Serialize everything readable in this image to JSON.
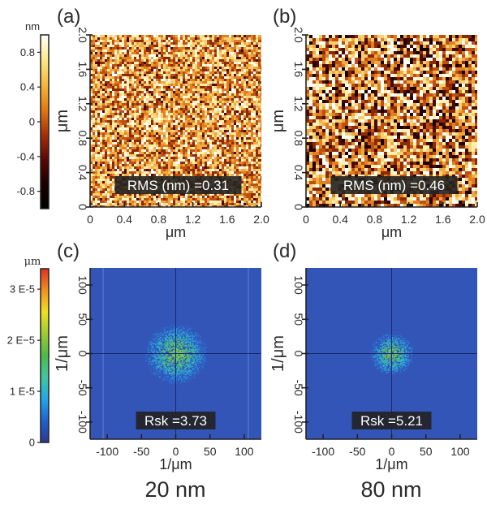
{
  "figure": {
    "panels": [
      {
        "id": "a",
        "label": "(a)",
        "type": "afm_height_map",
        "annotation": "RMS (nm) =0.31",
        "texture": "fine"
      },
      {
        "id": "b",
        "label": "(b)",
        "type": "afm_height_map",
        "annotation": "RMS (nm) =0.46",
        "texture": "coarse"
      },
      {
        "id": "c",
        "label": "(c)",
        "type": "fft_power_spectrum",
        "annotation": "Rsk =3.73",
        "spot_radius": 40
      },
      {
        "id": "d",
        "label": "(d)",
        "type": "fft_power_spectrum",
        "annotation": "Rsk =5.21",
        "spot_radius": 28
      }
    ],
    "column_captions": [
      "20 nm",
      "80 nm"
    ]
  },
  "chart_data": [
    {
      "panel": "a",
      "type": "heatmap",
      "title": "(a)",
      "xlabel": "μm",
      "ylabel": "μm",
      "xlim": [
        0,
        2.0
      ],
      "ylim": [
        0,
        2.0
      ],
      "xticks": [
        "0",
        "0.4",
        "0.8",
        "1.2",
        "1.6",
        "2.0"
      ],
      "yticks": [
        "0",
        "0.4",
        "0.8",
        "1.2",
        "1.6",
        "2.0"
      ],
      "annotation": "RMS (nm) =0.31",
      "rms_nm": 0.31,
      "colormap": "afmhot"
    },
    {
      "panel": "b",
      "type": "heatmap",
      "title": "(b)",
      "xlabel": "μm",
      "ylabel": "μm",
      "xlim": [
        0,
        2.0
      ],
      "ylim": [
        0,
        2.0
      ],
      "xticks": [
        "0",
        "0.4",
        "0.8",
        "1.2",
        "1.6",
        "2.0"
      ],
      "yticks": [
        "0",
        "0.4",
        "0.8",
        "1.2",
        "1.6",
        "2.0"
      ],
      "annotation": "RMS (nm) =0.46",
      "rms_nm": 0.46,
      "colormap": "afmhot"
    },
    {
      "panel": "c",
      "type": "heatmap",
      "title": "(c)",
      "xlabel": "1/μm",
      "ylabel": "1/μm",
      "xlim": [
        -125,
        125
      ],
      "ylim": [
        -125,
        125
      ],
      "xticks": [
        "-100",
        "-50",
        "0",
        "50",
        "100"
      ],
      "yticks": [
        "-100",
        "-50",
        "0",
        "50",
        "100"
      ],
      "annotation": "Rsk =3.73",
      "rsk": 3.73,
      "colormap": "jet"
    },
    {
      "panel": "d",
      "type": "heatmap",
      "title": "(d)",
      "xlabel": "1/μm",
      "ylabel": "1/μm",
      "xlim": [
        -125,
        125
      ],
      "ylim": [
        -125,
        125
      ],
      "xticks": [
        "-100",
        "-50",
        "0",
        "50",
        "100"
      ],
      "yticks": [
        "-100",
        "-50",
        "0",
        "50",
        "100"
      ],
      "annotation": "Rsk =5.21",
      "rsk": 5.21,
      "colormap": "jet"
    }
  ],
  "colorbars": [
    {
      "id": "height",
      "unit": "nm",
      "range": [
        -1.0,
        1.0
      ],
      "ticks": [
        {
          "value": 0.8,
          "label": "0.8"
        },
        {
          "value": 0.4,
          "label": "0.4"
        },
        {
          "value": 0,
          "label": "0"
        },
        {
          "value": -0.4,
          "label": "-0.4"
        },
        {
          "value": -0.8,
          "label": "-0.8"
        }
      ],
      "colors": [
        "#000000",
        "#1a0000",
        "#5a0a05",
        "#a8300a",
        "#e27a10",
        "#f5b83a",
        "#fde98a",
        "#ffffff"
      ]
    },
    {
      "id": "power",
      "unit": "μm",
      "range": [
        0,
        3.4e-05
      ],
      "ticks": [
        {
          "value": 3e-05,
          "label": "3 E-5"
        },
        {
          "value": 2e-05,
          "label": "2 E−5"
        },
        {
          "value": 1e-05,
          "label": "1 E-5"
        },
        {
          "value": 0,
          "label": "0"
        }
      ],
      "colors": [
        "#2a3a8c",
        "#2060d0",
        "#20a8e8",
        "#40c8a0",
        "#4cb84a",
        "#9ccc30",
        "#f0e020",
        "#f09020",
        "#e03020"
      ]
    }
  ],
  "colors": {
    "fft_background": "#3355b8",
    "annotation_bg": "#222222",
    "annotation_text": "#ffffff",
    "axis": "#222222"
  }
}
